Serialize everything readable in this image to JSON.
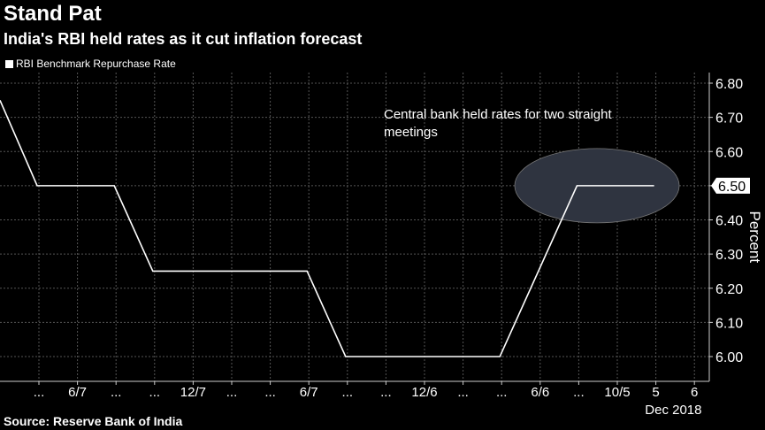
{
  "title": "Stand Pat",
  "subtitle": "India's RBI held rates as it cut inflation forecast",
  "source": "Source: Reserve Bank of India",
  "colors": {
    "line": "#ffffff",
    "highlight": "#2f3440",
    "grid": "#555555"
  },
  "chart_data": {
    "type": "line",
    "legend": [
      "RBI Benchmark Repurchase Rate"
    ],
    "ylabel": "Percent",
    "ylim": [
      5.9,
      6.85
    ],
    "yticks": [
      "6.00",
      "6.10",
      "6.20",
      "6.30",
      "6.40",
      "6.50",
      "6.60",
      "6.70",
      "6.80"
    ],
    "xticks": [
      "...",
      "6/7",
      "...",
      "...",
      "12/7",
      "...",
      "...",
      "6/7",
      "...",
      "...",
      "12/6",
      "...",
      "...",
      "6/6",
      "...",
      "10/5",
      "5",
      "6"
    ],
    "xsub": "Dec 2018",
    "last_value_label": "6.50",
    "annotation": [
      "Central bank held rates for two straight",
      "meetings"
    ],
    "series": [
      {
        "name": "RBI Benchmark Repurchase Rate",
        "points": [
          [
            -1,
            6.75
          ],
          [
            0,
            6.5
          ],
          [
            2,
            6.5
          ],
          [
            3,
            6.25
          ],
          [
            7,
            6.25
          ],
          [
            8,
            6.0
          ],
          [
            12,
            6.0
          ],
          [
            14,
            6.5
          ],
          [
            16,
            6.5
          ]
        ]
      }
    ]
  }
}
